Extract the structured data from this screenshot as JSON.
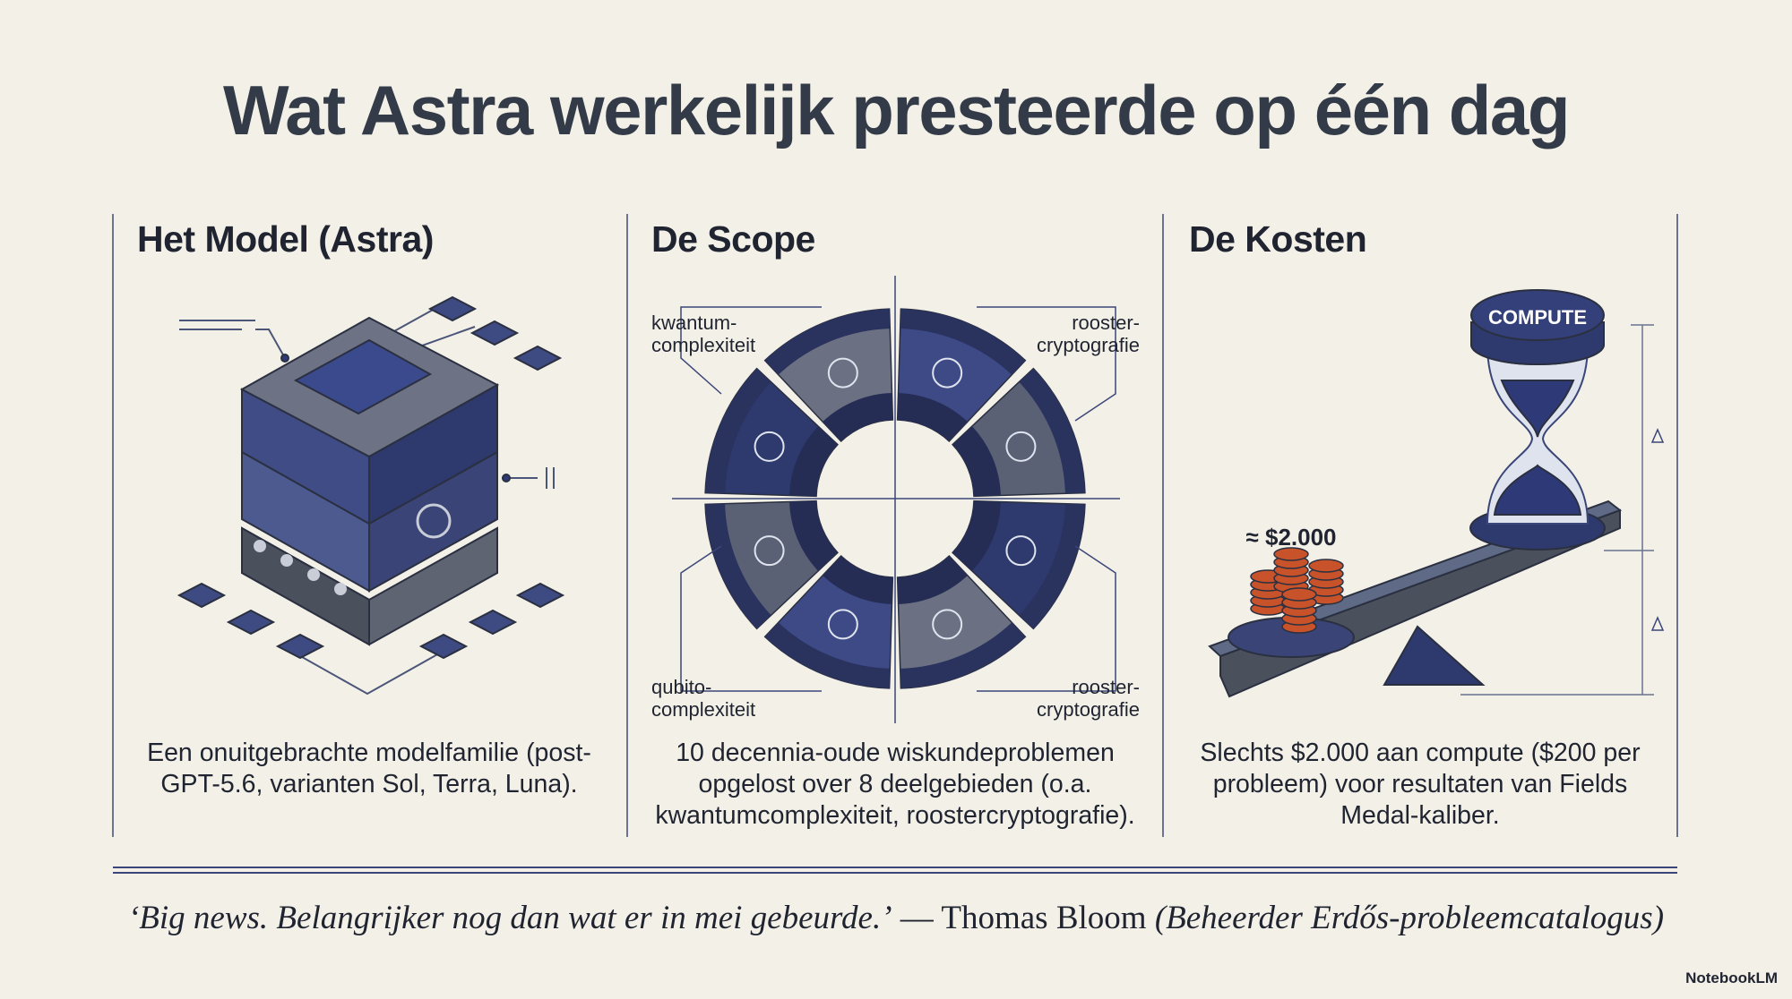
{
  "title": "Wat Astra werkelijk presteerde op één dag",
  "columns": [
    {
      "heading": "Het Model (Astra)",
      "body": "Een onuitgebrachte modelfamilie (post-GPT-5.6, varianten Sol, Terra, Luna)."
    },
    {
      "heading": "De Scope",
      "wheel_labels": [
        [
          "kwantum-",
          "complexiteit"
        ],
        [
          "rooster-",
          "cryptografie"
        ],
        [
          "qubito-",
          "complexiteit"
        ],
        [
          "rooster-",
          "cryptografie"
        ]
      ],
      "body": "10 decennia-oude wiskundeproblemen opgelost over 8 deelgebieden (o.a. kwantumcomplexiteit, roostercryptografie)."
    },
    {
      "heading": "De Kosten",
      "hourglass_label": "COMPUTE",
      "cost_label": "≈ $2.000",
      "body": "Slechts $2.000 aan compute ($200 per probleem) voor resultaten van Fields Medal-kaliber."
    }
  ],
  "quote": {
    "text": "‘Big news. Belangrijker nog dan wat er in mei gebeurde.’",
    "author": "— Thomas Bloom",
    "role": "(Beheerder Erdős-probleemcatalogus)"
  },
  "brand": "NotebookLM"
}
